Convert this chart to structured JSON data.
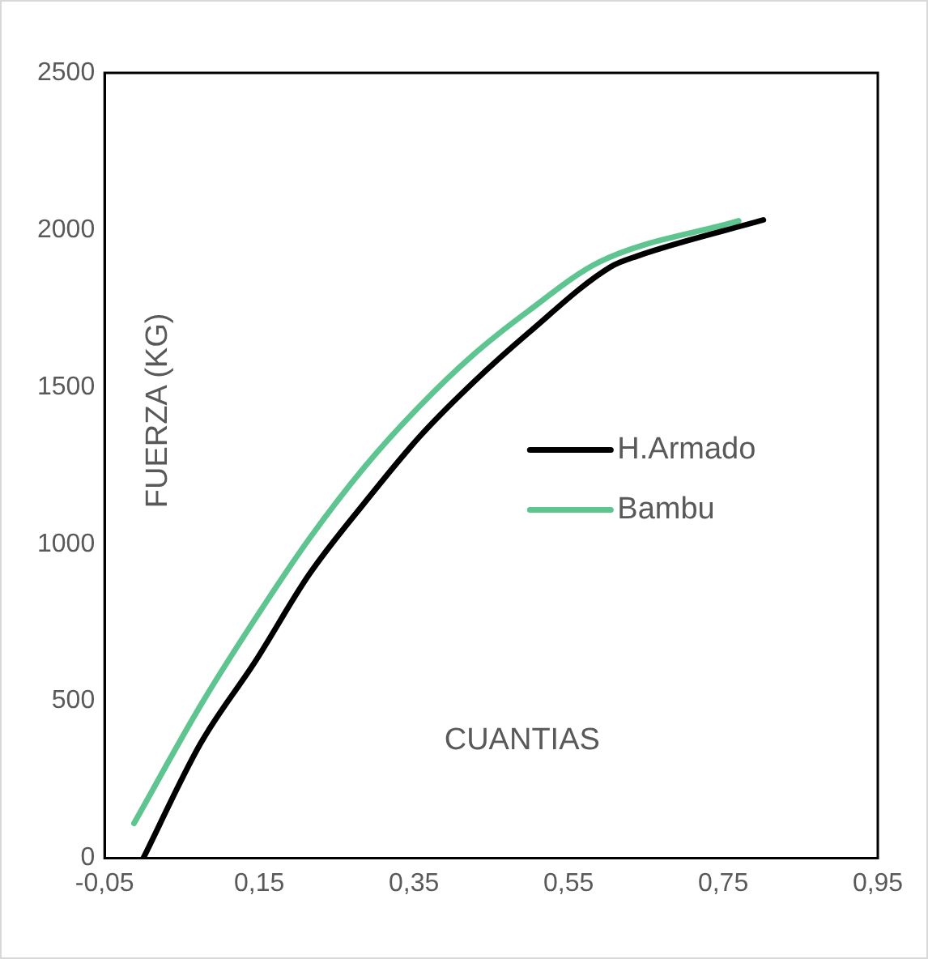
{
  "chart_data": {
    "type": "line",
    "xlabel": "CUANTIAS",
    "ylabel": "FUERZA (KG)",
    "xlim": [
      -0.05,
      0.95
    ],
    "xticks": [
      {
        "value": -0.05,
        "label": "-0,05"
      },
      {
        "value": 0.15,
        "label": "0,15"
      },
      {
        "value": 0.35,
        "label": "0,35"
      },
      {
        "value": 0.55,
        "label": "0,55"
      },
      {
        "value": 0.75,
        "label": "0,75"
      },
      {
        "value": 0.95,
        "label": "0,95"
      }
    ],
    "ylim": [
      0,
      2500
    ],
    "yticks": [
      0,
      500,
      1000,
      1500,
      2000,
      2500
    ],
    "grid": false,
    "legend": "right",
    "marker": "none",
    "line_style": "solid",
    "series": [
      {
        "name": "H.Armado",
        "color": "#000000",
        "x": [
          0.0,
          0.074,
          0.145,
          0.215,
          0.286,
          0.357,
          0.427,
          0.498,
          0.604,
          0.639,
          0.802
        ],
        "values": [
          0,
          365,
          627,
          905,
          1131,
          1341,
          1515,
          1672,
          1882,
          1917,
          2032
        ]
      },
      {
        "name": "Bambu",
        "color": "#5ec591",
        "x": [
          -0.012,
          0.074,
          0.145,
          0.215,
          0.286,
          0.357,
          0.427,
          0.498,
          0.59,
          0.77
        ],
        "values": [
          111,
          486,
          763,
          1018,
          1245,
          1438,
          1603,
          1742,
          1898,
          2029
        ]
      }
    ]
  }
}
